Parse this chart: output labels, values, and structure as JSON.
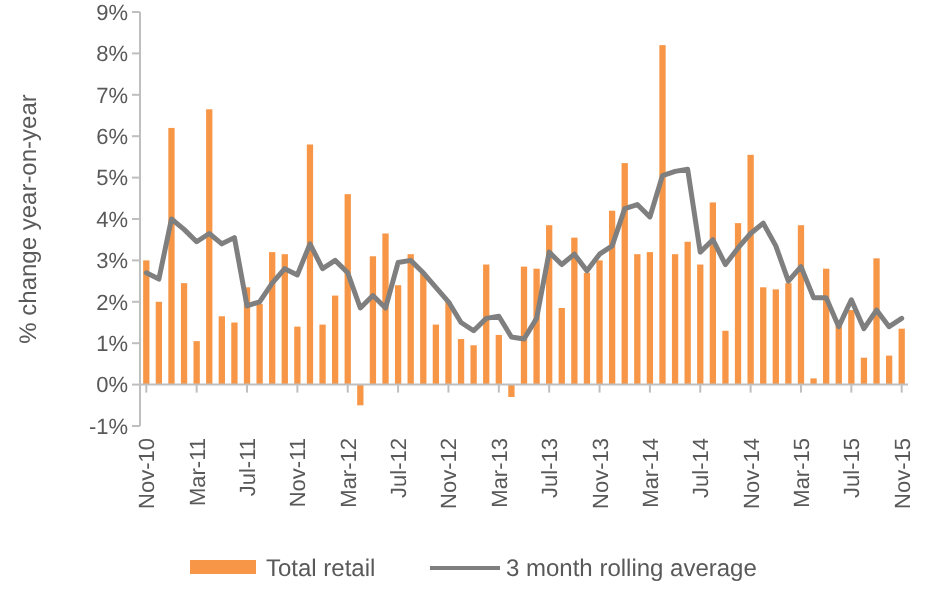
{
  "chart_data": {
    "type": "bar",
    "ylabel": "% change year-on-year",
    "categories": [
      "Nov-10",
      null,
      null,
      null,
      "Mar-11",
      null,
      null,
      null,
      "Jul-11",
      null,
      null,
      null,
      "Nov-11",
      null,
      null,
      null,
      "Mar-12",
      null,
      null,
      null,
      "Jul-12",
      null,
      null,
      null,
      "Nov-12",
      null,
      null,
      null,
      "Mar-13",
      null,
      null,
      null,
      "Jul-13",
      null,
      null,
      null,
      "Nov-13",
      null,
      null,
      null,
      "Mar-14",
      null,
      null,
      null,
      "Jul-14",
      null,
      null,
      null,
      "Nov-14",
      null,
      null,
      null,
      "Mar-15",
      null,
      null,
      null,
      "Jul-15",
      null,
      null,
      null,
      "Nov-15"
    ],
    "series": [
      {
        "name": "Total retail",
        "color": "#f79646",
        "values": [
          3.0,
          2.0,
          6.2,
          2.45,
          1.05,
          6.65,
          1.65,
          1.5,
          2.35,
          1.95,
          3.2,
          3.15,
          1.4,
          5.8,
          1.45,
          2.15,
          4.6,
          -0.5,
          3.1,
          3.65,
          2.4,
          3.15,
          2.7,
          1.45,
          2.0,
          1.1,
          0.95,
          2.9,
          1.2,
          -0.3,
          2.85,
          2.8,
          3.85,
          1.85,
          3.55,
          2.7,
          3.0,
          4.2,
          5.35,
          3.15,
          3.2,
          8.2,
          3.15,
          3.45,
          2.9,
          4.4,
          1.3,
          3.9,
          5.55,
          2.35,
          2.3,
          2.45,
          3.85,
          0.15,
          2.8,
          1.45,
          1.8,
          0.65,
          3.05,
          0.7,
          1.35
        ]
      },
      {
        "name": "3 month rolling average",
        "type": "line",
        "color": "#7f7f7f",
        "values": [
          2.7,
          2.55,
          4.0,
          3.75,
          3.45,
          3.65,
          3.4,
          3.55,
          1.9,
          2.0,
          2.45,
          2.8,
          2.65,
          3.4,
          2.8,
          3.0,
          2.7,
          1.85,
          2.15,
          1.85,
          2.95,
          3.0,
          2.7,
          2.35,
          2.0,
          1.5,
          1.3,
          1.6,
          1.65,
          1.15,
          1.1,
          1.6,
          3.2,
          2.9,
          3.15,
          2.75,
          3.15,
          3.35,
          4.25,
          4.35,
          4.05,
          5.05,
          5.15,
          5.2,
          3.2,
          3.5,
          2.9,
          3.3,
          3.65,
          3.9,
          3.35,
          2.5,
          2.85,
          2.1,
          2.1,
          1.4,
          2.05,
          1.35,
          1.8,
          1.4,
          1.6
        ]
      }
    ],
    "ylim": [
      -1,
      9
    ],
    "yticks": [
      {
        "value": -1,
        "label": "-1%"
      },
      {
        "value": 0,
        "label": "0%"
      },
      {
        "value": 1,
        "label": "1%"
      },
      {
        "value": 2,
        "label": "2%"
      },
      {
        "value": 3,
        "label": "3%"
      },
      {
        "value": 4,
        "label": "4%"
      },
      {
        "value": 5,
        "label": "5%"
      },
      {
        "value": 6,
        "label": "6%"
      },
      {
        "value": 7,
        "label": "7%"
      },
      {
        "value": 8,
        "label": "8%"
      },
      {
        "value": 9,
        "label": "9%"
      }
    ],
    "legend": "bottom"
  }
}
